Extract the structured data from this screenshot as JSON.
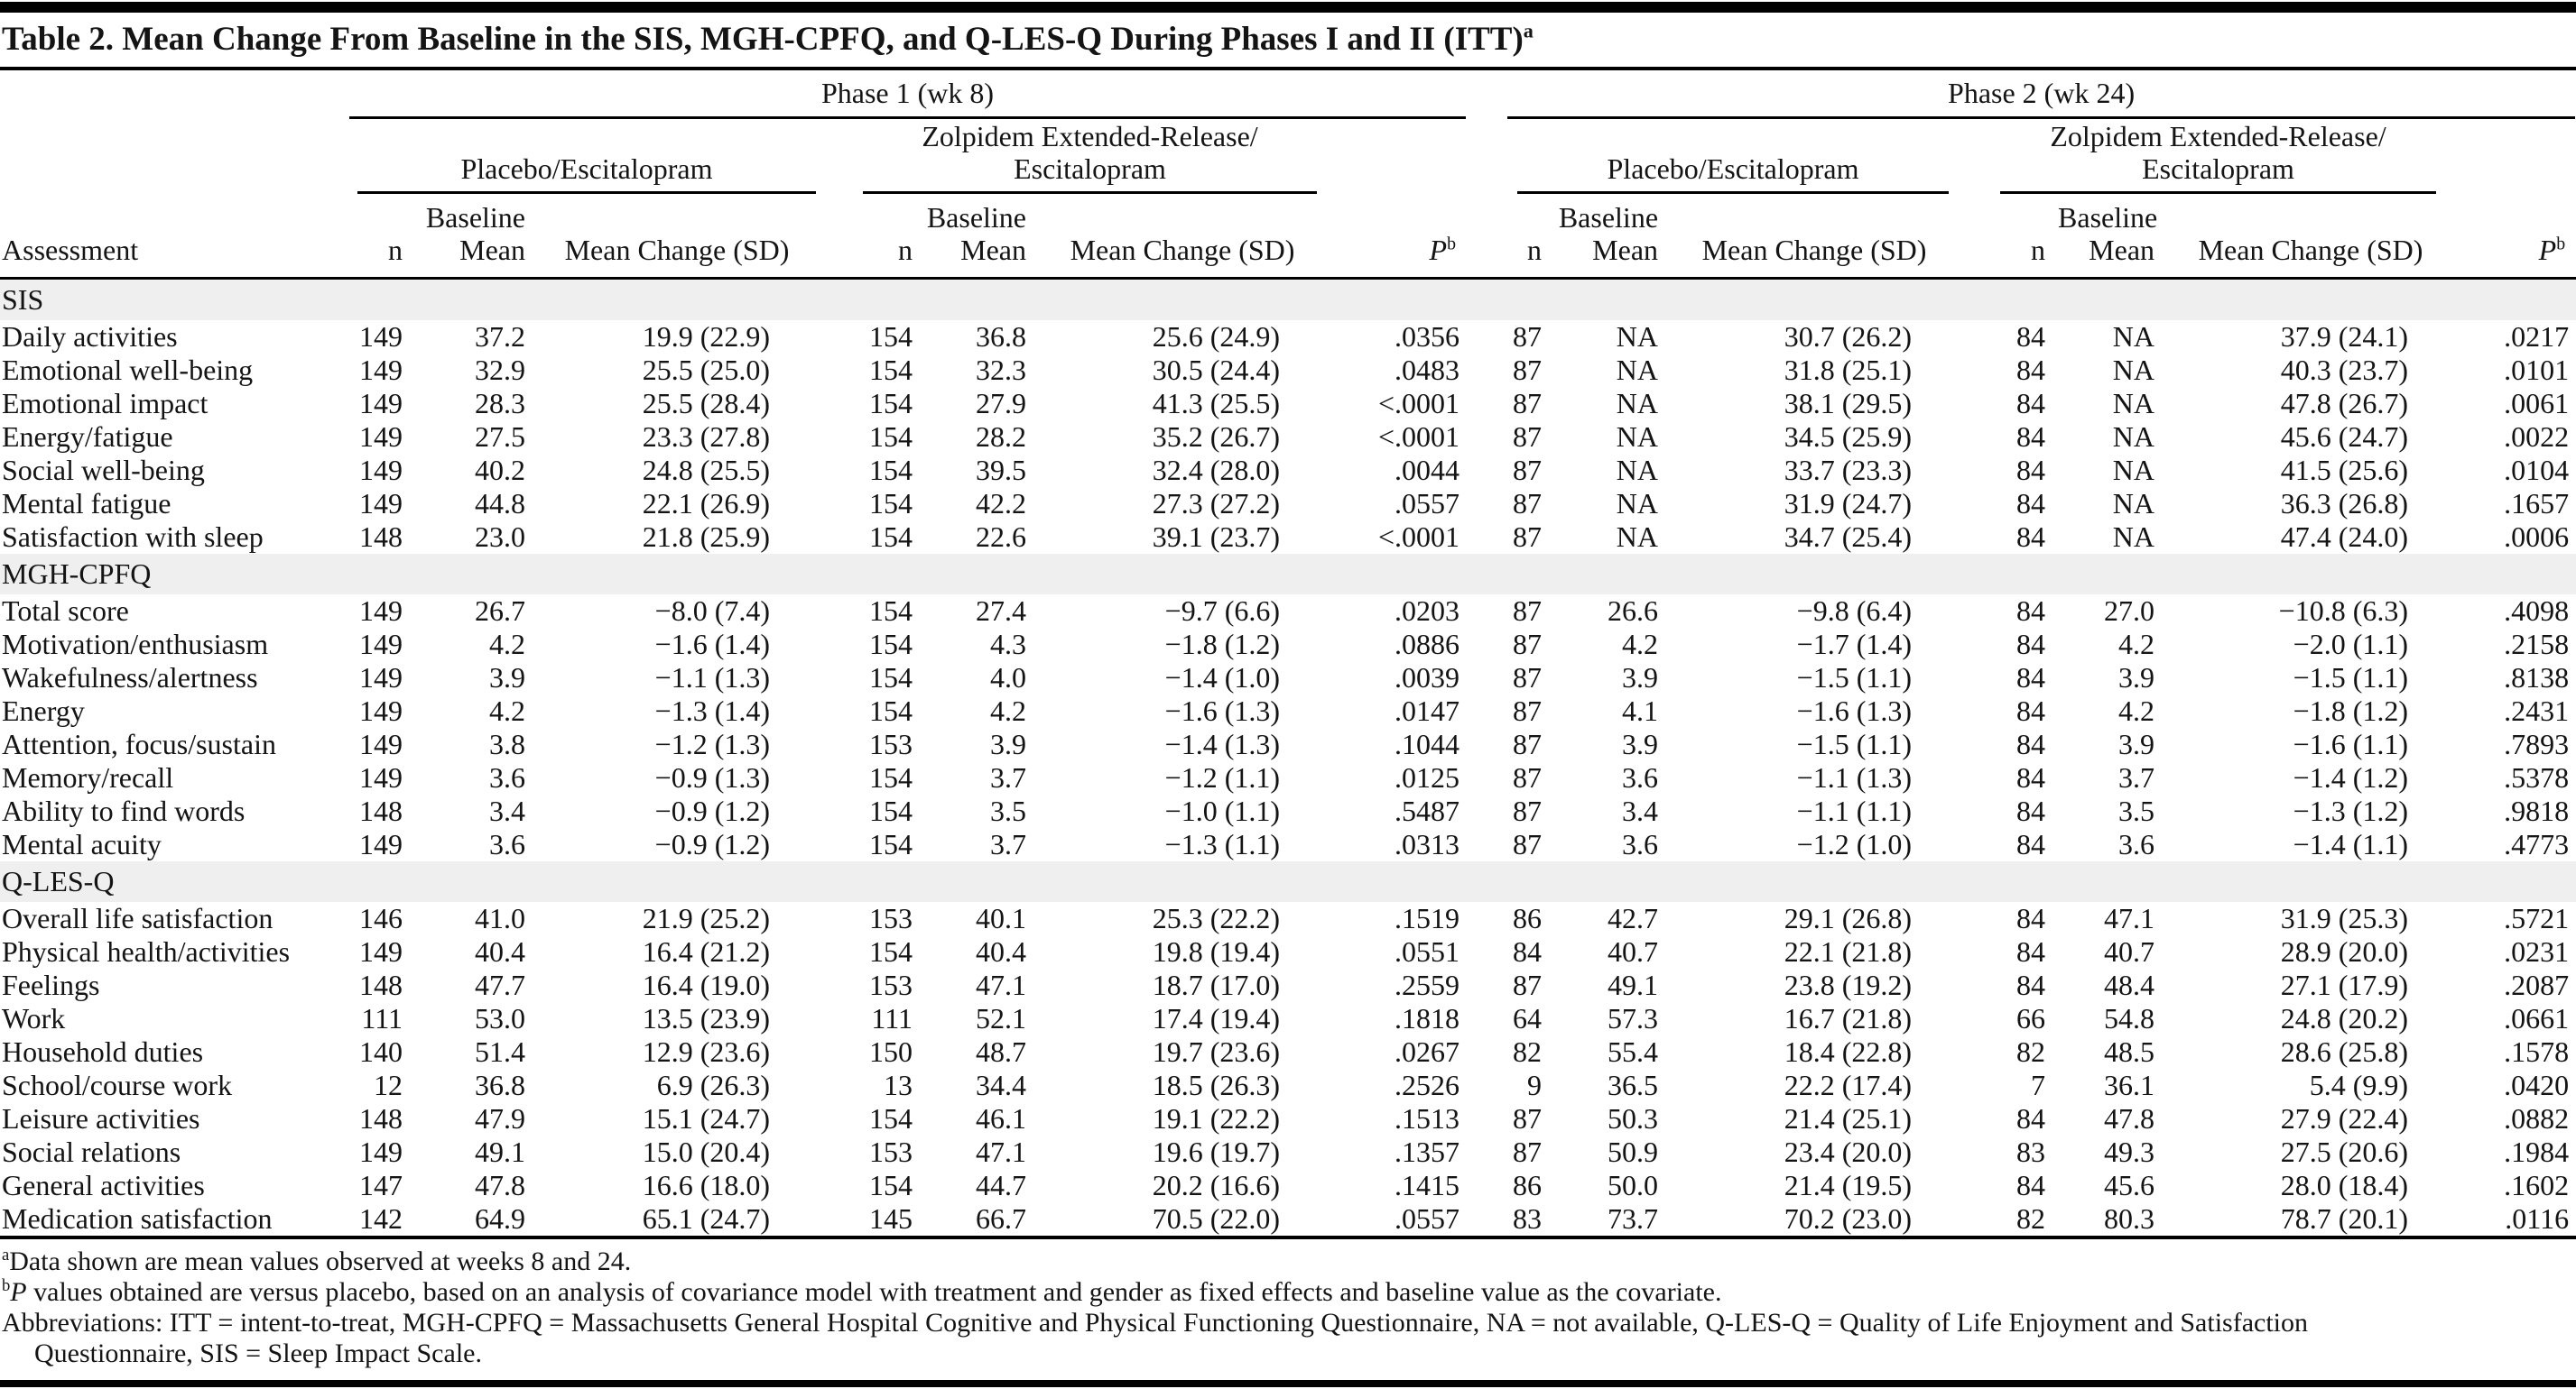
{
  "title": {
    "text": "Table 2. Mean Change From Baseline in the SIS, MGH-CPFQ, and Q-LES-Q During Phases I and II (ITT)",
    "sup": "a"
  },
  "header": {
    "phase1": "Phase 1 (wk 8)",
    "phase2": "Phase 2 (wk 24)",
    "placebo": "Placebo/Escitalopram",
    "zolpidem_line1": "Zolpidem Extended-Release/",
    "zolpidem_line2": "Escitalopram",
    "assessment": "Assessment",
    "n": "n",
    "baseline": "Baseline",
    "mean": "Mean",
    "mean_change": "Mean Change (SD)",
    "p": "P",
    "p_sup": "b"
  },
  "table": {
    "sections": [
      {
        "label": "SIS",
        "rows": [
          {
            "assessment": "Daily activities",
            "cells": [
              "149",
              "37.2",
              "19.9 (22.9)",
              "154",
              "36.8",
              "25.6 (24.9)",
              ".0356",
              "87",
              "NA",
              "30.7 (26.2)",
              "84",
              "NA",
              "37.9 (24.1)",
              ".0217"
            ]
          },
          {
            "assessment": "Emotional well-being",
            "cells": [
              "149",
              "32.9",
              "25.5 (25.0)",
              "154",
              "32.3",
              "30.5 (24.4)",
              ".0483",
              "87",
              "NA",
              "31.8 (25.1)",
              "84",
              "NA",
              "40.3 (23.7)",
              ".0101"
            ]
          },
          {
            "assessment": "Emotional impact",
            "cells": [
              "149",
              "28.3",
              "25.5 (28.4)",
              "154",
              "27.9",
              "41.3 (25.5)",
              "<.0001",
              "87",
              "NA",
              "38.1 (29.5)",
              "84",
              "NA",
              "47.8 (26.7)",
              ".0061"
            ]
          },
          {
            "assessment": "Energy/fatigue",
            "cells": [
              "149",
              "27.5",
              "23.3 (27.8)",
              "154",
              "28.2",
              "35.2 (26.7)",
              "<.0001",
              "87",
              "NA",
              "34.5 (25.9)",
              "84",
              "NA",
              "45.6 (24.7)",
              ".0022"
            ]
          },
          {
            "assessment": "Social well-being",
            "cells": [
              "149",
              "40.2",
              "24.8 (25.5)",
              "154",
              "39.5",
              "32.4 (28.0)",
              ".0044",
              "87",
              "NA",
              "33.7 (23.3)",
              "84",
              "NA",
              "41.5 (25.6)",
              ".0104"
            ]
          },
          {
            "assessment": "Mental fatigue",
            "cells": [
              "149",
              "44.8",
              "22.1 (26.9)",
              "154",
              "42.2",
              "27.3 (27.2)",
              ".0557",
              "87",
              "NA",
              "31.9 (24.7)",
              "84",
              "NA",
              "36.3 (26.8)",
              ".1657"
            ]
          },
          {
            "assessment": "Satisfaction with sleep",
            "cells": [
              "148",
              "23.0",
              "21.8 (25.9)",
              "154",
              "22.6",
              "39.1 (23.7)",
              "<.0001",
              "87",
              "NA",
              "34.7 (25.4)",
              "84",
              "NA",
              "47.4 (24.0)",
              ".0006"
            ]
          }
        ]
      },
      {
        "label": "MGH-CPFQ",
        "rows": [
          {
            "assessment": "Total score",
            "cells": [
              "149",
              "26.7",
              "−8.0 (7.4)",
              "154",
              "27.4",
              "−9.7 (6.6)",
              ".0203",
              "87",
              "26.6",
              "−9.8 (6.4)",
              "84",
              "27.0",
              "−10.8 (6.3)",
              ".4098"
            ]
          },
          {
            "assessment": "Motivation/enthusiasm",
            "cells": [
              "149",
              "4.2",
              "−1.6 (1.4)",
              "154",
              "4.3",
              "−1.8 (1.2)",
              ".0886",
              "87",
              "4.2",
              "−1.7 (1.4)",
              "84",
              "4.2",
              "−2.0 (1.1)",
              ".2158"
            ]
          },
          {
            "assessment": "Wakefulness/alertness",
            "cells": [
              "149",
              "3.9",
              "−1.1 (1.3)",
              "154",
              "4.0",
              "−1.4 (1.0)",
              ".0039",
              "87",
              "3.9",
              "−1.5 (1.1)",
              "84",
              "3.9",
              "−1.5 (1.1)",
              ".8138"
            ]
          },
          {
            "assessment": "Energy",
            "cells": [
              "149",
              "4.2",
              "−1.3 (1.4)",
              "154",
              "4.2",
              "−1.6 (1.3)",
              ".0147",
              "87",
              "4.1",
              "−1.6 (1.3)",
              "84",
              "4.2",
              "−1.8 (1.2)",
              ".2431"
            ]
          },
          {
            "assessment": "Attention, focus/sustain",
            "cells": [
              "149",
              "3.8",
              "−1.2 (1.3)",
              "153",
              "3.9",
              "−1.4 (1.3)",
              ".1044",
              "87",
              "3.9",
              "−1.5 (1.1)",
              "84",
              "3.9",
              "−1.6 (1.1)",
              ".7893"
            ]
          },
          {
            "assessment": "Memory/recall",
            "cells": [
              "149",
              "3.6",
              "−0.9 (1.3)",
              "154",
              "3.7",
              "−1.2 (1.1)",
              ".0125",
              "87",
              "3.6",
              "−1.1 (1.3)",
              "84",
              "3.7",
              "−1.4 (1.2)",
              ".5378"
            ]
          },
          {
            "assessment": "Ability to find words",
            "cells": [
              "148",
              "3.4",
              "−0.9 (1.2)",
              "154",
              "3.5",
              "−1.0 (1.1)",
              ".5487",
              "87",
              "3.4",
              "−1.1 (1.1)",
              "84",
              "3.5",
              "−1.3 (1.2)",
              ".9818"
            ]
          },
          {
            "assessment": "Mental acuity",
            "cells": [
              "149",
              "3.6",
              "−0.9 (1.2)",
              "154",
              "3.7",
              "−1.3 (1.1)",
              ".0313",
              "87",
              "3.6",
              "−1.2 (1.0)",
              "84",
              "3.6",
              "−1.4 (1.1)",
              ".4773"
            ]
          }
        ]
      },
      {
        "label": "Q-LES-Q",
        "rows": [
          {
            "assessment": "Overall life satisfaction",
            "cells": [
              "146",
              "41.0",
              "21.9 (25.2)",
              "153",
              "40.1",
              "25.3 (22.2)",
              ".1519",
              "86",
              "42.7",
              "29.1 (26.8)",
              "84",
              "47.1",
              "31.9 (25.3)",
              ".5721"
            ]
          },
          {
            "assessment": "Physical health/activities",
            "cells": [
              "149",
              "40.4",
              "16.4 (21.2)",
              "154",
              "40.4",
              "19.8 (19.4)",
              ".0551",
              "84",
              "40.7",
              "22.1 (21.8)",
              "84",
              "40.7",
              "28.9 (20.0)",
              ".0231"
            ]
          },
          {
            "assessment": "Feelings",
            "cells": [
              "148",
              "47.7",
              "16.4 (19.0)",
              "153",
              "47.1",
              "18.7 (17.0)",
              ".2559",
              "87",
              "49.1",
              "23.8 (19.2)",
              "84",
              "48.4",
              "27.1 (17.9)",
              ".2087"
            ]
          },
          {
            "assessment": "Work",
            "cells": [
              "111",
              "53.0",
              "13.5 (23.9)",
              "111",
              "52.1",
              "17.4 (19.4)",
              ".1818",
              "64",
              "57.3",
              "16.7 (21.8)",
              "66",
              "54.8",
              "24.8 (20.2)",
              ".0661"
            ]
          },
          {
            "assessment": "Household duties",
            "cells": [
              "140",
              "51.4",
              "12.9 (23.6)",
              "150",
              "48.7",
              "19.7 (23.6)",
              ".0267",
              "82",
              "55.4",
              "18.4 (22.8)",
              "82",
              "48.5",
              "28.6 (25.8)",
              ".1578"
            ]
          },
          {
            "assessment": "School/course work",
            "cells": [
              "12",
              "36.8",
              "6.9 (26.3)",
              "13",
              "34.4",
              "18.5 (26.3)",
              ".2526",
              "9",
              "36.5",
              "22.2 (17.4)",
              "7",
              "36.1",
              "5.4 (9.9)",
              ".0420"
            ]
          },
          {
            "assessment": "Leisure activities",
            "cells": [
              "148",
              "47.9",
              "15.1 (24.7)",
              "154",
              "46.1",
              "19.1 (22.2)",
              ".1513",
              "87",
              "50.3",
              "21.4 (25.1)",
              "84",
              "47.8",
              "27.9 (22.4)",
              ".0882"
            ]
          },
          {
            "assessment": "Social relations",
            "cells": [
              "149",
              "49.1",
              "15.0 (20.4)",
              "153",
              "47.1",
              "19.6 (19.7)",
              ".1357",
              "87",
              "50.9",
              "23.4 (20.0)",
              "83",
              "49.3",
              "27.5 (20.6)",
              ".1984"
            ]
          },
          {
            "assessment": "General activities",
            "cells": [
              "147",
              "47.8",
              "16.6 (18.0)",
              "154",
              "44.7",
              "20.2 (16.6)",
              ".1415",
              "86",
              "50.0",
              "21.4 (19.5)",
              "84",
              "45.6",
              "28.0 (18.4)",
              ".1602"
            ]
          },
          {
            "assessment": "Medication satisfaction",
            "cells": [
              "142",
              "64.9",
              "65.1 (24.7)",
              "145",
              "66.7",
              "70.5 (22.0)",
              ".0557",
              "83",
              "73.7",
              "70.2 (23.0)",
              "82",
              "80.3",
              "78.7 (20.1)",
              ".0116"
            ]
          }
        ]
      }
    ]
  },
  "footnotes": {
    "a_sup": "a",
    "a_text": "Data shown are mean values observed at weeks 8 and 24.",
    "b_sup": "b",
    "b_italic": "P",
    "b_text": " values obtained are versus placebo, based on an analysis of covariance model with treatment and gender as fixed effects and baseline value as the covariate.",
    "abbrev_line1": "Abbreviations: ITT = intent-to-treat, MGH-CPFQ = Massachusetts General Hospital Cognitive and Physical Functioning Questionnaire, NA = not available, Q-LES-Q = Quality of Life Enjoyment and Satisfaction",
    "abbrev_line2": "Questionnaire, SIS = Sleep Impact Scale."
  },
  "colors": {
    "section_band": "#efefef",
    "rule": "#000000",
    "text": "#141414"
  }
}
